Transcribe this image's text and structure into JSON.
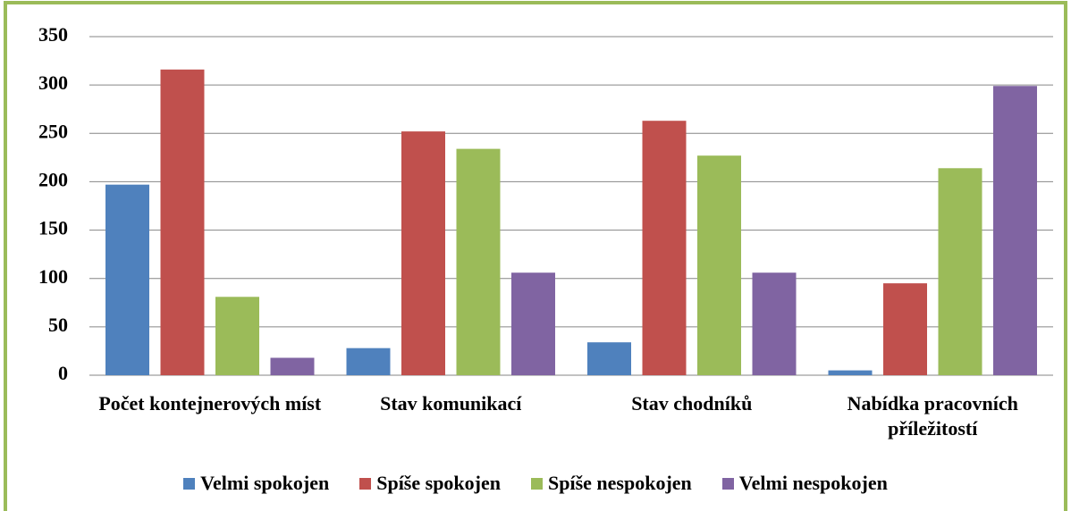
{
  "chart_data": {
    "type": "bar",
    "categories": [
      "Počet kontejnerových míst",
      "Stav komunikací",
      "Stav chodníků",
      "Nabídka pracovních příležitostí"
    ],
    "series": [
      {
        "name": "Velmi spokojen",
        "color": "#4f81bd",
        "values": [
          197,
          28,
          34,
          5
        ]
      },
      {
        "name": "Spíše spokojen",
        "color": "#c0504d",
        "values": [
          316,
          252,
          263,
          95
        ]
      },
      {
        "name": "Spíše nespokojen",
        "color": "#9bbb59",
        "values": [
          81,
          234,
          227,
          214
        ]
      },
      {
        "name": "Velmi nespokojen",
        "color": "#8064a2",
        "values": [
          18,
          106,
          106,
          299
        ]
      }
    ],
    "ylim": [
      0,
      350
    ],
    "yticks": [
      0,
      50,
      100,
      150,
      200,
      250,
      300,
      350
    ],
    "grid": true,
    "legend": "bottom"
  }
}
